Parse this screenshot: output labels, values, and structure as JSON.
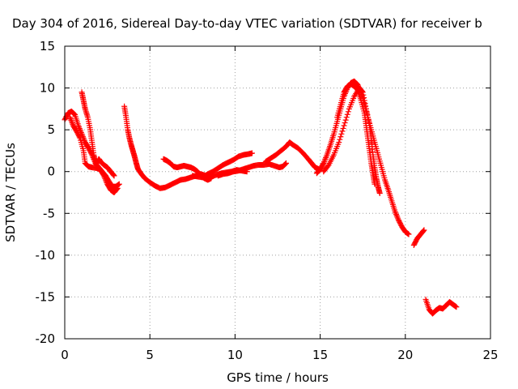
{
  "chart_data": {
    "type": "scatter",
    "title": "Day 304 of 2016, Sidereal Day-to-day VTEC variation (SDTVAR) for receiver b",
    "xlabel": "GPS time / hours",
    "ylabel": "SDTVAR / TECUs",
    "xlim": [
      0,
      25
    ],
    "ylim": [
      -20,
      15
    ],
    "xticks": [
      "0",
      "5",
      "10",
      "15",
      "20",
      "25"
    ],
    "yticks": [
      "-20",
      "-15",
      "-10",
      "-5",
      "0",
      "5",
      "10",
      "15"
    ],
    "grid": true,
    "marker": "plus",
    "color": "#ff0000",
    "series": [
      {
        "points": [
          [
            0.0,
            6.2
          ],
          [
            0.2,
            7.0
          ],
          [
            0.4,
            7.2
          ],
          [
            0.6,
            6.8
          ],
          [
            0.8,
            5.5
          ],
          [
            1.0,
            4.5
          ],
          [
            1.2,
            3.5
          ],
          [
            1.4,
            2.8
          ],
          [
            1.6,
            2.0
          ],
          [
            1.8,
            1.0
          ],
          [
            2.0,
            0.5
          ],
          [
            2.2,
            0.0
          ],
          [
            2.4,
            -0.5
          ],
          [
            2.6,
            -1.2
          ],
          [
            2.8,
            -1.8
          ],
          [
            3.0,
            -1.8
          ],
          [
            3.2,
            -1.5
          ]
        ]
      },
      {
        "points": [
          [
            0.3,
            6.5
          ],
          [
            0.5,
            5.5
          ],
          [
            0.7,
            4.8
          ],
          [
            0.9,
            4.0
          ],
          [
            1.1,
            2.5
          ],
          [
            1.2,
            1.0
          ],
          [
            1.4,
            0.6
          ],
          [
            1.6,
            0.5
          ],
          [
            1.9,
            0.4
          ],
          [
            2.1,
            0.2
          ],
          [
            2.3,
            -0.5
          ],
          [
            2.5,
            -1.5
          ],
          [
            2.7,
            -2.2
          ],
          [
            2.9,
            -2.5
          ],
          [
            3.1,
            -2.0
          ]
        ]
      },
      {
        "points": [
          [
            1.0,
            9.5
          ],
          [
            1.1,
            8.5
          ],
          [
            1.2,
            7.5
          ],
          [
            1.35,
            6.5
          ],
          [
            1.5,
            5.0
          ],
          [
            1.6,
            3.5
          ],
          [
            1.7,
            2.0
          ],
          [
            1.8,
            1.2
          ],
          [
            1.9,
            1.0
          ],
          [
            2.0,
            1.5
          ],
          [
            2.1,
            1.2
          ],
          [
            2.3,
            0.8
          ],
          [
            2.5,
            0.5
          ],
          [
            2.7,
            0.0
          ],
          [
            2.9,
            -0.5
          ]
        ]
      },
      {
        "points": [
          [
            3.5,
            7.8
          ],
          [
            3.6,
            6.5
          ],
          [
            3.7,
            5.0
          ],
          [
            3.8,
            4.0
          ],
          [
            3.9,
            3.2
          ],
          [
            4.0,
            2.5
          ],
          [
            4.1,
            1.8
          ],
          [
            4.2,
            1.0
          ],
          [
            4.3,
            0.3
          ],
          [
            4.5,
            -0.3
          ],
          [
            4.7,
            -0.8
          ],
          [
            5.0,
            -1.3
          ],
          [
            5.3,
            -1.7
          ],
          [
            5.6,
            -2.0
          ],
          [
            5.9,
            -1.9
          ],
          [
            6.2,
            -1.6
          ],
          [
            6.5,
            -1.3
          ],
          [
            6.8,
            -1.0
          ],
          [
            7.1,
            -0.9
          ],
          [
            7.4,
            -0.7
          ],
          [
            7.7,
            -0.5
          ],
          [
            8.0,
            -0.3
          ],
          [
            8.3,
            -0.5
          ],
          [
            8.6,
            -0.6
          ],
          [
            8.9,
            -0.4
          ],
          [
            9.2,
            -0.2
          ],
          [
            9.5,
            -0.1
          ],
          [
            9.8,
            0.0
          ],
          [
            10.1,
            0.2
          ],
          [
            10.4,
            0.1
          ],
          [
            10.7,
            0.0
          ]
        ]
      },
      {
        "points": [
          [
            5.8,
            1.5
          ],
          [
            6.0,
            1.3
          ],
          [
            6.2,
            1.0
          ],
          [
            6.4,
            0.6
          ],
          [
            6.6,
            0.5
          ],
          [
            6.8,
            0.6
          ],
          [
            7.0,
            0.7
          ],
          [
            7.2,
            0.6
          ],
          [
            7.4,
            0.5
          ],
          [
            7.6,
            0.3
          ],
          [
            7.8,
            0.0
          ],
          [
            8.0,
            -0.5
          ],
          [
            8.2,
            -0.8
          ],
          [
            8.4,
            -1.0
          ],
          [
            8.6,
            -0.8
          ]
        ]
      },
      {
        "points": [
          [
            7.5,
            -0.5
          ],
          [
            7.8,
            -0.6
          ],
          [
            8.1,
            -0.7
          ],
          [
            8.4,
            -0.3
          ],
          [
            8.7,
            0.0
          ],
          [
            9.0,
            0.4
          ],
          [
            9.3,
            0.8
          ],
          [
            9.6,
            1.1
          ],
          [
            9.9,
            1.4
          ],
          [
            10.2,
            1.8
          ],
          [
            10.5,
            2.0
          ],
          [
            10.8,
            2.1
          ],
          [
            11.0,
            2.2
          ]
        ]
      },
      {
        "points": [
          [
            9.0,
            -0.5
          ],
          [
            9.3,
            -0.3
          ],
          [
            9.6,
            -0.2
          ],
          [
            9.9,
            0.0
          ],
          [
            10.2,
            0.1
          ],
          [
            10.5,
            0.3
          ],
          [
            10.8,
            0.5
          ],
          [
            11.1,
            0.7
          ],
          [
            11.4,
            0.8
          ],
          [
            11.7,
            0.8
          ],
          [
            12.0,
            0.9
          ],
          [
            12.3,
            0.7
          ],
          [
            12.6,
            0.5
          ],
          [
            12.8,
            0.6
          ],
          [
            13.0,
            1.0
          ]
        ]
      },
      {
        "points": [
          [
            11.8,
            1.2
          ],
          [
            12.1,
            1.6
          ],
          [
            12.4,
            2.0
          ],
          [
            12.7,
            2.5
          ],
          [
            13.0,
            3.0
          ],
          [
            13.2,
            3.5
          ],
          [
            13.4,
            3.2
          ],
          [
            13.7,
            2.8
          ],
          [
            14.0,
            2.2
          ],
          [
            14.3,
            1.5
          ],
          [
            14.5,
            1.0
          ],
          [
            14.7,
            0.5
          ],
          [
            14.9,
            0.3
          ]
        ]
      },
      {
        "points": [
          [
            14.8,
            -0.2
          ],
          [
            15.0,
            0.3
          ],
          [
            15.2,
            1.0
          ],
          [
            15.4,
            2.0
          ],
          [
            15.6,
            3.2
          ],
          [
            15.8,
            4.5
          ],
          [
            16.0,
            6.0
          ],
          [
            16.2,
            7.5
          ],
          [
            16.4,
            9.0
          ],
          [
            16.6,
            10.0
          ],
          [
            16.8,
            10.6
          ],
          [
            17.0,
            10.8
          ],
          [
            17.2,
            10.4
          ],
          [
            17.4,
            9.5
          ],
          [
            17.6,
            8.0
          ],
          [
            17.8,
            6.5
          ],
          [
            18.0,
            5.0
          ],
          [
            18.2,
            3.5
          ],
          [
            18.4,
            2.0
          ],
          [
            18.6,
            0.5
          ],
          [
            18.8,
            -1.0
          ],
          [
            19.0,
            -2.2
          ],
          [
            19.2,
            -3.5
          ],
          [
            19.4,
            -4.8
          ],
          [
            19.6,
            -5.8
          ],
          [
            19.8,
            -6.6
          ],
          [
            20.0,
            -7.2
          ],
          [
            20.2,
            -7.5
          ]
        ]
      },
      {
        "points": [
          [
            15.2,
            0.0
          ],
          [
            15.5,
            0.8
          ],
          [
            15.8,
            2.0
          ],
          [
            16.1,
            3.5
          ],
          [
            16.4,
            5.5
          ],
          [
            16.7,
            7.5
          ],
          [
            17.0,
            9.0
          ],
          [
            17.3,
            10.0
          ],
          [
            17.5,
            9.5
          ],
          [
            17.7,
            7.5
          ],
          [
            17.9,
            5.5
          ],
          [
            18.0,
            4.0
          ],
          [
            18.1,
            2.0
          ],
          [
            18.2,
            0.5
          ],
          [
            18.3,
            -0.8
          ],
          [
            18.4,
            -1.8
          ],
          [
            18.5,
            -2.6
          ]
        ]
      },
      {
        "points": [
          [
            16.0,
            6.5
          ],
          [
            16.2,
            8.0
          ],
          [
            16.4,
            9.5
          ],
          [
            16.6,
            10.2
          ],
          [
            16.8,
            10.5
          ],
          [
            17.0,
            10.2
          ],
          [
            17.2,
            9.8
          ],
          [
            17.4,
            8.5
          ],
          [
            17.6,
            7.0
          ],
          [
            17.7,
            5.5
          ],
          [
            17.8,
            4.0
          ],
          [
            17.9,
            2.5
          ],
          [
            18.0,
            1.0
          ],
          [
            18.1,
            -0.3
          ],
          [
            18.2,
            -1.5
          ]
        ]
      },
      {
        "points": [
          [
            20.5,
            -8.8
          ],
          [
            20.7,
            -8.0
          ],
          [
            20.9,
            -7.5
          ],
          [
            21.1,
            -7.0
          ]
        ]
      },
      {
        "points": [
          [
            21.2,
            -15.3
          ],
          [
            21.4,
            -16.5
          ],
          [
            21.6,
            -17.0
          ],
          [
            21.8,
            -16.6
          ],
          [
            22.0,
            -16.3
          ],
          [
            22.2,
            -16.4
          ],
          [
            22.4,
            -16.0
          ],
          [
            22.6,
            -15.6
          ],
          [
            22.8,
            -15.9
          ],
          [
            23.0,
            -16.2
          ]
        ]
      }
    ]
  }
}
